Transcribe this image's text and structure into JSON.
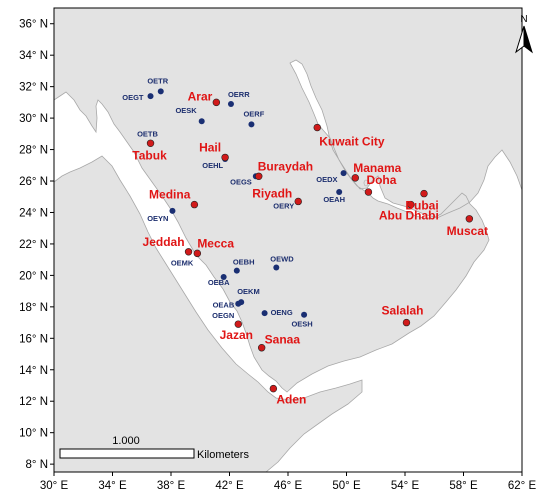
{
  "map": {
    "lon_ticks": [
      "30° E",
      "34° E",
      "38° E",
      "42° E",
      "46° E",
      "50° E",
      "54° E",
      "58° E",
      "62° E"
    ],
    "lat_ticks": [
      "8° N",
      "10° N",
      "12° N",
      "14° N",
      "16° N",
      "18° N",
      "20° N",
      "22° N",
      "24° N",
      "26° N",
      "28° N",
      "30° N",
      "32° N",
      "34° N",
      "36° N"
    ],
    "lon_range": [
      30,
      62
    ],
    "lat_range": [
      7.5,
      37
    ],
    "north_arrow_label": "N",
    "scale_bar": {
      "value_label": "1.000",
      "unit_label": "Kilometers"
    },
    "colors": {
      "land": "#e3e3e3",
      "sea": "#ffffff",
      "station": "#1a2f73",
      "city_point": "#d11a1a",
      "city_label": "#e01515"
    }
  },
  "stations": [
    {
      "code": "OETR",
      "lon": 37.3,
      "lat": 31.7
    },
    {
      "code": "OEGT",
      "lon": 36.6,
      "lat": 31.4
    },
    {
      "code": "OERR",
      "lon": 42.1,
      "lat": 30.9
    },
    {
      "code": "OESK",
      "lon": 40.1,
      "lat": 29.8
    },
    {
      "code": "OERF",
      "lon": 43.5,
      "lat": 29.6
    },
    {
      "code": "OETB",
      "lon": 36.6,
      "lat": 28.4
    },
    {
      "code": "OEHL",
      "lon": 41.7,
      "lat": 27.4
    },
    {
      "code": "OEGS",
      "lon": 43.8,
      "lat": 26.3
    },
    {
      "code": "OEDX",
      "lon": 49.8,
      "lat": 26.5
    },
    {
      "code": "OEAH",
      "lon": 49.5,
      "lat": 25.3
    },
    {
      "code": "OERY",
      "lon": 46.7,
      "lat": 24.7
    },
    {
      "code": "OEYN",
      "lon": 38.1,
      "lat": 24.1
    },
    {
      "code": "OEMK",
      "lon": 39.8,
      "lat": 21.4
    },
    {
      "code": "OEWD",
      "lon": 45.2,
      "lat": 20.5
    },
    {
      "code": "OEBH",
      "lon": 42.5,
      "lat": 20.3
    },
    {
      "code": "OEBA",
      "lon": 41.6,
      "lat": 19.9
    },
    {
      "code": "OEKM",
      "lon": 42.8,
      "lat": 18.3
    },
    {
      "code": "OEAB",
      "lon": 42.6,
      "lat": 18.2
    },
    {
      "code": "OENG",
      "lon": 44.4,
      "lat": 17.6
    },
    {
      "code": "OESH",
      "lon": 47.1,
      "lat": 17.5
    },
    {
      "code": "OEGN",
      "lon": 42.6,
      "lat": 16.9
    }
  ],
  "cities": [
    {
      "name": "Arar",
      "lon": 41.1,
      "lat": 31.0
    },
    {
      "name": "Kuwait City",
      "lon": 48.0,
      "lat": 29.4
    },
    {
      "name": "Tabuk",
      "lon": 36.6,
      "lat": 28.4
    },
    {
      "name": "Hail",
      "lon": 41.7,
      "lat": 27.5
    },
    {
      "name": "Buraydah",
      "lon": 44.0,
      "lat": 26.3
    },
    {
      "name": "Manama",
      "lon": 50.6,
      "lat": 26.2
    },
    {
      "name": "Riyadh",
      "lon": 46.7,
      "lat": 24.7
    },
    {
      "name": "Doha",
      "lon": 51.5,
      "lat": 25.3
    },
    {
      "name": "Medina",
      "lon": 39.6,
      "lat": 24.5
    },
    {
      "name": "Abu Dhabi",
      "lon": 54.4,
      "lat": 24.5
    },
    {
      "name": "Dubai",
      "lon": 55.3,
      "lat": 25.2
    },
    {
      "name": "Muscat",
      "lon": 58.4,
      "lat": 23.6
    },
    {
      "name": "Jeddah",
      "lon": 39.2,
      "lat": 21.5
    },
    {
      "name": "Mecca",
      "lon": 39.8,
      "lat": 21.4
    },
    {
      "name": "Jazan",
      "lon": 42.6,
      "lat": 16.9
    },
    {
      "name": "Sanaa",
      "lon": 44.2,
      "lat": 15.4
    },
    {
      "name": "Salalah",
      "lon": 54.1,
      "lat": 17.0
    },
    {
      "name": "Aden",
      "lon": 45.0,
      "lat": 12.8
    }
  ]
}
